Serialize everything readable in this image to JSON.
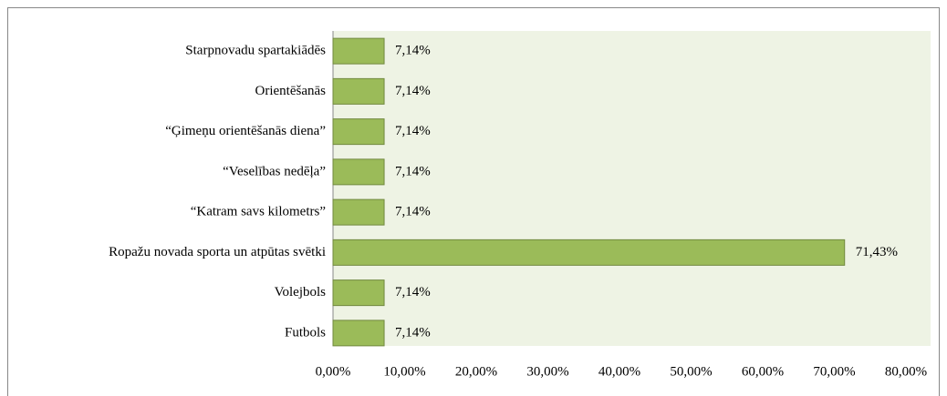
{
  "chart_data": {
    "type": "bar",
    "orientation": "horizontal",
    "categories": [
      "Starpnovadu spartakiādēs",
      "Orientēšanās",
      "“Ģimeņu orientēšanās diena”",
      "“Veselības nedēļa”",
      "“Katram savs kilometrs”",
      "Ropažu novada sporta un atpūtas svētki",
      "Volejbols",
      "Futbols"
    ],
    "values": [
      7.14,
      7.14,
      7.14,
      7.14,
      7.14,
      71.43,
      7.14,
      7.14
    ],
    "value_labels": [
      "7,14%",
      "7,14%",
      "7,14%",
      "7,14%",
      "7,14%",
      "71,43%",
      "7,14%",
      "7,14%"
    ],
    "color": "#9bbb59",
    "xlim": [
      0,
      80
    ],
    "xticks": [
      {
        "value": 0,
        "label": "0,00%"
      },
      {
        "value": 10,
        "label": "10,00%"
      },
      {
        "value": 20,
        "label": "20,00%"
      },
      {
        "value": 30,
        "label": "30,00%"
      },
      {
        "value": 40,
        "label": "40,00%"
      },
      {
        "value": 50,
        "label": "50,00%"
      },
      {
        "value": 60,
        "label": "60,00%"
      },
      {
        "value": 70,
        "label": "70,00%"
      },
      {
        "value": 80,
        "label": "80,00%"
      }
    ]
  }
}
